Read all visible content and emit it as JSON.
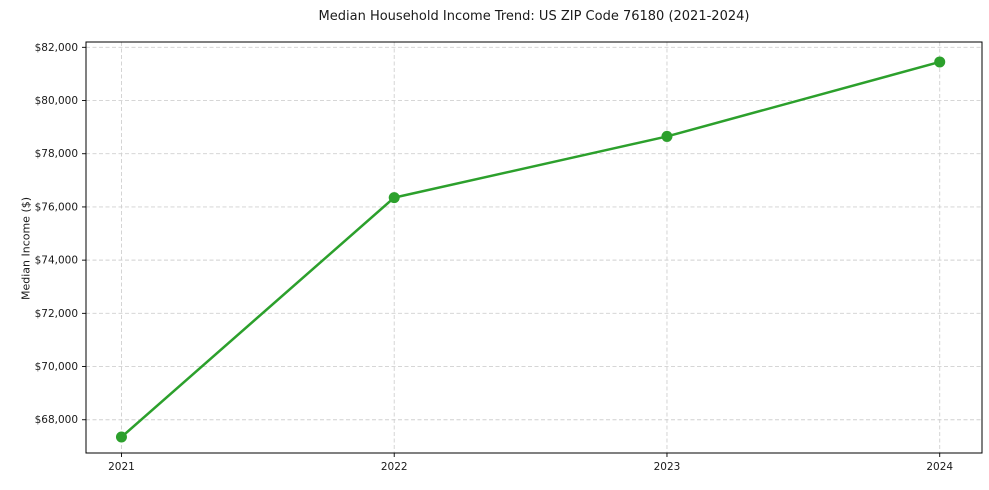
{
  "chart_data": {
    "type": "line",
    "title": "Median Household Income Trend: US ZIP Code 76180 (2021-2024)",
    "xlabel": "",
    "ylabel": "Median Income ($)",
    "x": [
      2021,
      2022,
      2023,
      2024
    ],
    "xtick_labels": [
      "2021",
      "2022",
      "2023",
      "2024"
    ],
    "values": [
      67350,
      76350,
      78650,
      81450
    ],
    "yticks": [
      68000,
      70000,
      72000,
      74000,
      76000,
      78000,
      80000,
      82000
    ],
    "ytick_labels": [
      "$68,000",
      "$70,000",
      "$72,000",
      "$74,000",
      "$76,000",
      "$78,000",
      "$80,000",
      "$82,000"
    ],
    "xlim": [
      2020.87,
      2024.155
    ],
    "ylim": [
      66750,
      82200
    ],
    "grid": true,
    "grid_style": "dashed",
    "legend_position": "none",
    "line_color": "#2ca02c",
    "marker": "circle",
    "grid_color": "#d0d0d0",
    "axis_color": "#000000",
    "background_color": "#ffffff"
  }
}
